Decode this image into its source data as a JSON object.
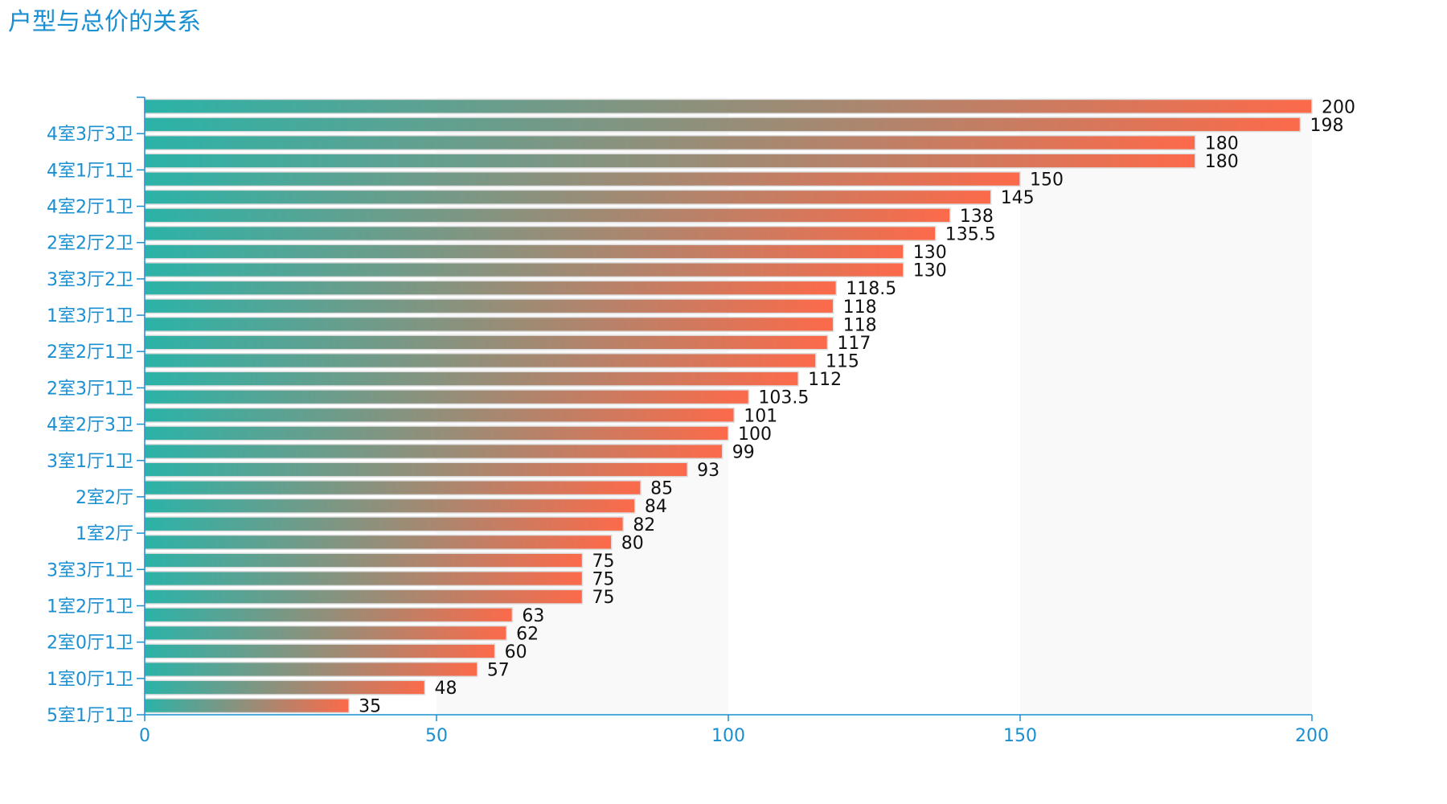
{
  "chart_data": {
    "type": "bar",
    "orientation": "horizontal",
    "title": "户型与总价的关系",
    "xlabel": "",
    "ylabel": "",
    "xlim": [
      0,
      200
    ],
    "x_ticks": [
      0,
      50,
      100,
      150,
      200
    ],
    "categories": [
      "5室1厅1卫",
      "",
      "1室0厅1卫",
      "",
      "2室0厅1卫",
      "",
      "1室2厅1卫",
      "",
      "3室3厅1卫",
      "",
      "1室2厅",
      "",
      "2室2厅",
      "",
      "3室1厅1卫",
      "",
      "4室2厅3卫",
      "",
      "2室3厅1卫",
      "",
      "2室2厅1卫",
      "",
      "1室3厅1卫",
      "",
      "3室3厅2卫",
      "",
      "2室2厅2卫",
      "",
      "4室2厅1卫",
      "",
      "4室1厅1卫",
      "",
      "4室3厅3卫",
      ""
    ],
    "values": [
      35,
      48,
      57,
      60,
      62,
      63,
      75,
      75,
      75,
      80,
      82,
      84,
      85,
      93,
      99,
      100,
      101,
      103.5,
      112,
      115,
      117,
      118,
      118,
      118.5,
      130,
      130,
      135.5,
      138,
      145,
      150,
      180,
      180,
      198,
      200
    ],
    "data_labels": [
      "35",
      "48",
      "57",
      "60",
      "62",
      "63",
      "75",
      "75",
      "75",
      "80",
      "82",
      "84",
      "85",
      "93",
      "99",
      "100",
      "101",
      "103.5",
      "112",
      "115",
      "117",
      "118",
      "118",
      "118.5",
      "130",
      "130",
      "135.5",
      "138",
      "145",
      "150",
      "180",
      "180",
      "198",
      "200"
    ],
    "grid": false,
    "colors": {
      "gradient_start": "#2bb3a8",
      "gradient_end": "#fc6a4a",
      "bar_border": "#dddddd",
      "axis": "#1a8fd1",
      "split_area": "#f9f9f9"
    }
  }
}
